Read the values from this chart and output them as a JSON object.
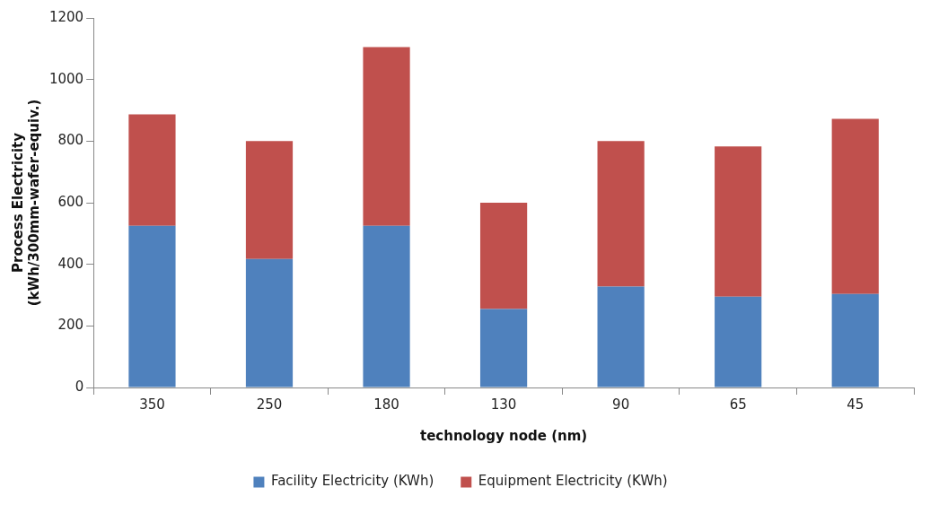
{
  "chart_data": {
    "type": "bar",
    "stacked": true,
    "xlabel": "technology node (nm)",
    "ylabel": "Process Electricity\n(kWh/300mm-wafer-equiv.)",
    "categories": [
      "350",
      "250",
      "180",
      "130",
      "90",
      "65",
      "45"
    ],
    "series": [
      {
        "name": "Facility Electricity (KWh)",
        "color": "#4f81bd",
        "values": [
          525,
          417,
          525,
          255,
          328,
          295,
          304
        ]
      },
      {
        "name": "Equipment Electricity (KWh)",
        "color": "#c0504d",
        "values": [
          362,
          383,
          580,
          345,
          472,
          488,
          568
        ]
      }
    ],
    "ylim": [
      0,
      1200
    ],
    "yticks": [
      0,
      200,
      400,
      600,
      800,
      1000,
      1200
    ],
    "grid": false,
    "legend": "bottom"
  }
}
